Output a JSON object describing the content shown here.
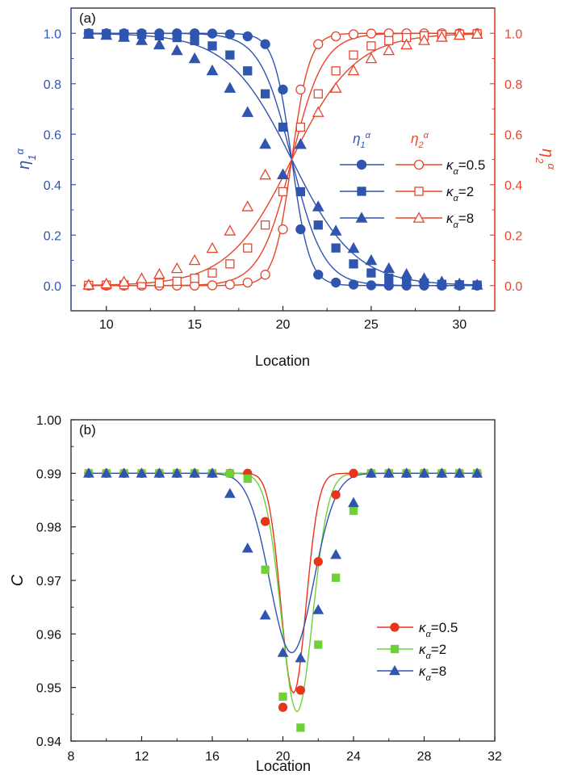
{
  "colors": {
    "eta1": "#2f55b0",
    "eta2": "#e8452b",
    "red": "#e8341c",
    "green": "#6fd13a",
    "blue": "#2f55b0",
    "axis": "#222222"
  },
  "chart_data": [
    {
      "type": "line",
      "panel_label": "(a)",
      "xlabel": "Location",
      "ylabel_left": "η₁^α",
      "ylabel_right": "η₂^α",
      "xlim": [
        8,
        32
      ],
      "ylim": [
        -0.1,
        1.1
      ],
      "xticks": [
        10,
        15,
        20,
        25,
        30
      ],
      "yticks": [
        0.0,
        0.2,
        0.4,
        0.6,
        0.8,
        1.0
      ],
      "ytick_labels": [
        "0.0",
        "0.2",
        "0.4",
        "0.6",
        "0.8",
        "1.0"
      ],
      "legend": {
        "header_eta1": "η₁^α",
        "header_eta2": "η₂^α",
        "placement": "right-middle",
        "entries": [
          "κα=0.5",
          "κα=2",
          "κα=8"
        ]
      },
      "x": [
        9,
        10,
        11,
        12,
        13,
        14,
        15,
        16,
        17,
        18,
        19,
        20,
        21,
        22,
        23,
        24,
        25,
        26,
        27,
        28,
        29,
        30,
        31
      ],
      "series": [
        {
          "name": "κα=0.5",
          "marker": "circle",
          "eta1_curve_scale": 0.5,
          "eta1": [
            1.0,
            1.0,
            1.0,
            1.0,
            1.0,
            1.0,
            1.0,
            0.999,
            0.996,
            0.988,
            0.957,
            0.777,
            0.223,
            0.043,
            0.012,
            0.004,
            0.001,
            0.0,
            0.0,
            0.0,
            0.0,
            0.0,
            0.0
          ],
          "eta2": [
            0.0,
            0.0,
            0.0,
            0.0,
            0.0,
            0.0,
            0.0,
            0.001,
            0.004,
            0.012,
            0.043,
            0.223,
            0.777,
            0.957,
            0.988,
            0.996,
            0.999,
            1.0,
            1.0,
            1.0,
            1.0,
            1.0,
            1.0
          ]
        },
        {
          "name": "κα=2",
          "marker": "square",
          "eta1_curve_scale": 0.9,
          "eta1": [
            0.999,
            0.998,
            0.997,
            0.995,
            0.99,
            0.983,
            0.971,
            0.95,
            0.914,
            0.851,
            0.76,
            0.628,
            0.372,
            0.24,
            0.149,
            0.086,
            0.05,
            0.029,
            0.017,
            0.01,
            0.005,
            0.003,
            0.002
          ],
          "eta2": [
            0.001,
            0.002,
            0.003,
            0.005,
            0.01,
            0.017,
            0.029,
            0.05,
            0.086,
            0.149,
            0.24,
            0.372,
            0.628,
            0.76,
            0.851,
            0.914,
            0.95,
            0.971,
            0.983,
            0.99,
            0.995,
            0.997,
            0.998
          ]
        },
        {
          "name": "κα=8",
          "marker": "triangle",
          "eta1_curve_scale": 1.8,
          "eta1": [
            0.997,
            0.993,
            0.985,
            0.972,
            0.955,
            0.932,
            0.9,
            0.852,
            0.783,
            0.687,
            0.561,
            0.44,
            0.56,
            0.313,
            0.217,
            0.148,
            0.1,
            0.068,
            0.045,
            0.028,
            0.015,
            0.007,
            0.003
          ],
          "eta2": [
            0.003,
            0.007,
            0.015,
            0.028,
            0.045,
            0.068,
            0.1,
            0.148,
            0.217,
            0.313,
            0.439,
            0.44,
            0.56,
            0.687,
            0.783,
            0.852,
            0.9,
            0.932,
            0.955,
            0.972,
            0.985,
            0.993,
            0.997
          ]
        }
      ]
    },
    {
      "type": "scatter",
      "panel_label": "(b)",
      "xlabel": "Location",
      "ylabel": "C",
      "xlim": [
        8,
        32
      ],
      "ylim": [
        0.94,
        1.0
      ],
      "xticks": [
        8,
        12,
        16,
        20,
        24,
        28,
        32
      ],
      "yticks": [
        0.94,
        0.95,
        0.96,
        0.97,
        0.98,
        0.99,
        1.0
      ],
      "ytick_labels": [
        "0.94",
        "0.95",
        "0.96",
        "0.97",
        "0.98",
        "0.99",
        "1.00"
      ],
      "legend": {
        "placement": "bottom-right",
        "entries": [
          "κα=0.5",
          "κα=2",
          "κα=8"
        ]
      },
      "x": [
        9,
        10,
        11,
        12,
        13,
        14,
        15,
        16,
        17,
        18,
        19,
        20,
        21,
        22,
        23,
        24,
        25,
        26,
        27,
        28,
        29,
        30,
        31
      ],
      "series": [
        {
          "name": "κα=0.5",
          "marker": "circle",
          "color_key": "red",
          "values": [
            0.99,
            0.99,
            0.99,
            0.99,
            0.99,
            0.99,
            0.99,
            0.99,
            0.99,
            0.99,
            0.981,
            0.9463,
            0.9495,
            0.9735,
            0.986,
            0.99,
            0.99,
            0.99,
            0.99,
            0.99,
            0.99,
            0.99,
            0.99
          ],
          "curve": {
            "center": 20.6,
            "depth": 0.041,
            "width": 1.0,
            "baseline": 0.99
          }
        },
        {
          "name": "κα=2",
          "marker": "square",
          "color_key": "green",
          "values": [
            0.99,
            0.99,
            0.99,
            0.99,
            0.99,
            0.99,
            0.99,
            0.99,
            0.99,
            0.989,
            0.972,
            0.9483,
            0.9425,
            0.958,
            0.9705,
            0.983,
            0.99,
            0.99,
            0.99,
            0.99,
            0.99,
            0.99,
            0.99
          ],
          "curve": {
            "center": 20.8,
            "depth": 0.0445,
            "width": 1.25,
            "baseline": 0.99
          }
        },
        {
          "name": "κα=8",
          "marker": "triangle",
          "color_key": "blue",
          "values": [
            0.99,
            0.99,
            0.99,
            0.99,
            0.99,
            0.99,
            0.99,
            0.99,
            0.9862,
            0.976,
            0.9635,
            0.9565,
            0.9555,
            0.9645,
            0.9748,
            0.9845,
            0.99,
            0.99,
            0.99,
            0.99,
            0.99,
            0.99,
            0.99
          ],
          "curve": {
            "center": 20.5,
            "depth": 0.0335,
            "width": 1.75,
            "baseline": 0.99
          }
        }
      ]
    }
  ]
}
